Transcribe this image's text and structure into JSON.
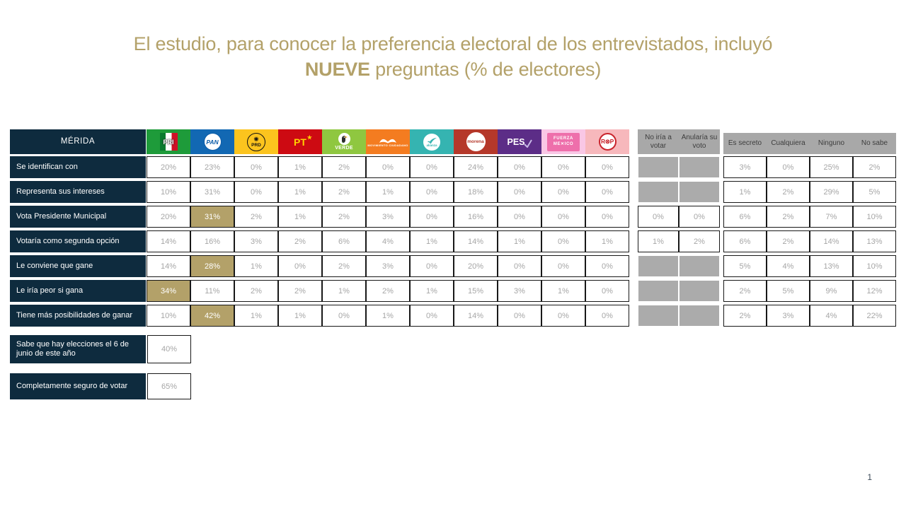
{
  "slide": {
    "title_line1": "El estudio, para conocer la preferencia electoral de los entrevistados, incluyó",
    "title_bold": "NUEVE",
    "title_line2_rest": " preguntas (% de electores)",
    "page_number": "1"
  },
  "colors": {
    "title_gold": "#b3a169",
    "navy": "#0e2b3e",
    "highlight_gold": "#b3a169",
    "blocked_gray": "#ababab",
    "header_gray": "#a8a8a8",
    "value_text_gray": "#a6a6a6",
    "cell_border": "#181818"
  },
  "chart_data": {
    "type": "table",
    "title": "El estudio, para conocer la preferencia electoral de los entrevistados, incluyó NUEVE preguntas (% de electores)",
    "corner_label": "MÉRIDA",
    "party_columns": [
      {
        "id": "pri",
        "name": "PRI",
        "color": "#1e9b3a",
        "icon": "pri-logo-icon"
      },
      {
        "id": "pan",
        "name": "PAN",
        "color": "#1268b3",
        "icon": "pan-logo-icon"
      },
      {
        "id": "prd",
        "name": "PRD",
        "color": "#fcc41e",
        "icon": "prd-logo-icon"
      },
      {
        "id": "pt",
        "name": "PT",
        "color": "#cd0a12",
        "icon": "pt-logo-icon"
      },
      {
        "id": "verde",
        "name": "VERDE",
        "color": "#8fc740",
        "icon": "verde-logo-icon"
      },
      {
        "id": "mc",
        "name": "Movimiento Ciudadano",
        "color": "#f47c20",
        "icon": "movimiento-ciudadano-logo-icon"
      },
      {
        "id": "alianza",
        "name": "Alianza",
        "color": "#35b4b1",
        "icon": "alianza-logo-icon"
      },
      {
        "id": "morena",
        "name": "Morena",
        "color": "#b5382a",
        "icon": "morena-logo-icon"
      },
      {
        "id": "pes",
        "name": "PES",
        "color": "#5c2d87",
        "icon": "pes-logo-icon"
      },
      {
        "id": "fm",
        "name": "Fuerza México",
        "color": "#f9c7e5",
        "icon": "fuerza-mexico-logo-icon"
      },
      {
        "id": "rsp",
        "name": "RSP",
        "color": "#f7b8bc",
        "icon": "rsp-logo-icon"
      }
    ],
    "mid_columns": [
      "No iría a votar",
      "Anularía su voto"
    ],
    "right_columns": [
      "Es secreto",
      "Cualquiera",
      "Ninguno",
      "No sabe"
    ],
    "column_order": [
      "PRI",
      "PAN",
      "PRD",
      "PT",
      "VERDE",
      "Movimiento Ciudadano",
      "Alianza",
      "Morena",
      "PES",
      "Fuerza México",
      "RSP",
      "No iría a votar",
      "Anularía su voto",
      "Es secreto",
      "Cualquiera",
      "Ninguno",
      "No sabe"
    ],
    "rows": [
      {
        "label": "Se identifican con",
        "values": [
          "20%",
          "23%",
          "0%",
          "1%",
          "2%",
          "0%",
          "0%",
          "24%",
          "0%",
          "0%",
          "0%",
          null,
          null,
          "3%",
          "0%",
          "25%",
          "2%"
        ],
        "highlight_index": null
      },
      {
        "label": "Representa sus intereses",
        "values": [
          "10%",
          "31%",
          "0%",
          "1%",
          "2%",
          "1%",
          "0%",
          "18%",
          "0%",
          "0%",
          "0%",
          null,
          null,
          "1%",
          "2%",
          "29%",
          "5%"
        ],
        "highlight_index": null
      },
      {
        "label": "Vota Presidente Municipal",
        "values": [
          "20%",
          "31%",
          "2%",
          "1%",
          "2%",
          "3%",
          "0%",
          "16%",
          "0%",
          "0%",
          "0%",
          "0%",
          "0%",
          "6%",
          "2%",
          "7%",
          "10%"
        ],
        "highlight_index": 1
      },
      {
        "label": "Votaría como segunda opción",
        "values": [
          "14%",
          "16%",
          "3%",
          "2%",
          "6%",
          "4%",
          "1%",
          "14%",
          "1%",
          "0%",
          "1%",
          "1%",
          "2%",
          "6%",
          "2%",
          "14%",
          "13%"
        ],
        "highlight_index": null
      },
      {
        "label": "Le conviene que gane",
        "values": [
          "14%",
          "28%",
          "1%",
          "0%",
          "2%",
          "3%",
          "0%",
          "20%",
          "0%",
          "0%",
          "0%",
          null,
          null,
          "5%",
          "4%",
          "13%",
          "10%"
        ],
        "highlight_index": 1
      },
      {
        "label": "Le iría peor si gana",
        "values": [
          "34%",
          "11%",
          "2%",
          "2%",
          "1%",
          "2%",
          "1%",
          "15%",
          "3%",
          "1%",
          "0%",
          null,
          null,
          "2%",
          "5%",
          "9%",
          "12%"
        ],
        "highlight_index": 0
      },
      {
        "label": "Tiene más posibilidades de ganar",
        "values": [
          "10%",
          "42%",
          "1%",
          "1%",
          "0%",
          "1%",
          "0%",
          "14%",
          "0%",
          "0%",
          "0%",
          null,
          null,
          "2%",
          "3%",
          "4%",
          "22%"
        ],
        "highlight_index": 1
      }
    ],
    "summary_rows": [
      {
        "label": "Sabe que hay elecciones el 6 de junio de este año",
        "value": "40%"
      },
      {
        "label": "Completamente seguro de votar",
        "value": "65%"
      }
    ]
  }
}
